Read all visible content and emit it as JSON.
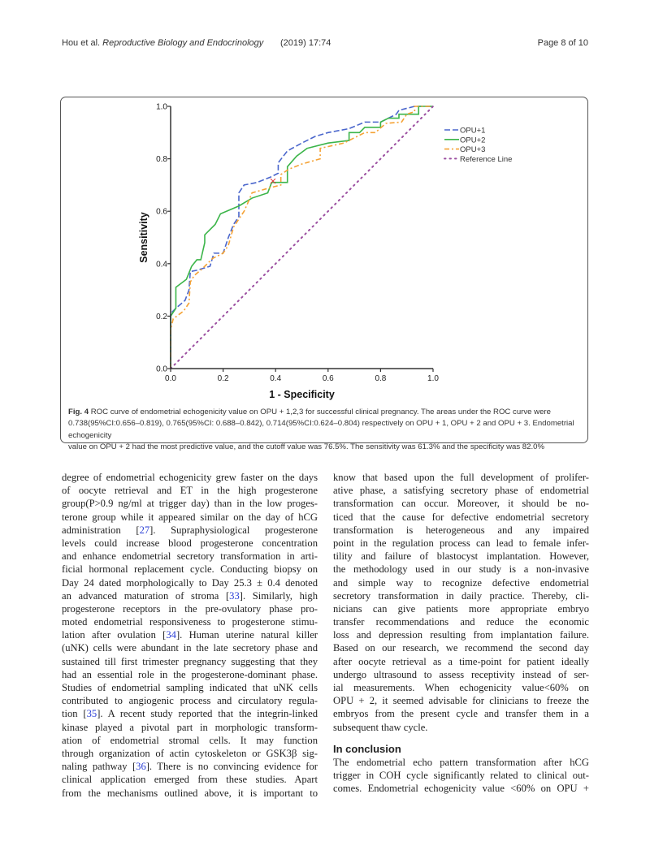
{
  "header": {
    "authors": "Hou et al.",
    "journal": "Reproductive Biology and Endocrinology",
    "year_volume": "(2019) 17:74",
    "page": "Page 8 of 10"
  },
  "figure": {
    "caption_label": "Fig. 4",
    "caption_lines": [
      " ROC curve of endometrial echogenicity value on OPU + 1,2,3 for successful clinical pregnancy. The areas under the ROC curve were",
      "0.738(95%CI:0.656–0.819), 0.765(95%CI: 0.688–0.842), 0.714(95%CI:0.624–0.804) respectively on OPU + 1, OPU + 2 and OPU + 3. Endometrial echogenicity",
      "value on OPU + 2 had the most predictive value, and the cutoff value was 76.5%. The sensitivity was 61.3% and the specificity was 82.0%"
    ]
  },
  "chart_data": {
    "type": "line",
    "title": "",
    "xlabel": "1 - Specificity",
    "ylabel": "Sensitivity",
    "xlim": [
      0,
      1
    ],
    "ylim": [
      0,
      1
    ],
    "xticks": [
      "0.0",
      "0.2",
      "0.4",
      "0.6",
      "0.8",
      "1.0"
    ],
    "yticks": [
      "0.0",
      "0.2",
      "0.4",
      "0.6",
      "0.8",
      "1.0"
    ],
    "grid": false,
    "legend_position": "top-right",
    "series": [
      {
        "name": "OPU+1",
        "color": "#4a66cc",
        "style": "dash",
        "points": [
          [
            0,
            0
          ],
          [
            0,
            0.21
          ],
          [
            0.02,
            0.23
          ],
          [
            0.055,
            0.26
          ],
          [
            0.07,
            0.3
          ],
          [
            0.075,
            0.37
          ],
          [
            0.1,
            0.375
          ],
          [
            0.15,
            0.39
          ],
          [
            0.165,
            0.44
          ],
          [
            0.2,
            0.44
          ],
          [
            0.22,
            0.5
          ],
          [
            0.24,
            0.55
          ],
          [
            0.26,
            0.58
          ],
          [
            0.26,
            0.67
          ],
          [
            0.28,
            0.7
          ],
          [
            0.33,
            0.71
          ],
          [
            0.38,
            0.73
          ],
          [
            0.41,
            0.745
          ],
          [
            0.41,
            0.785
          ],
          [
            0.445,
            0.83
          ],
          [
            0.5,
            0.86
          ],
          [
            0.55,
            0.885
          ],
          [
            0.6,
            0.9
          ],
          [
            0.68,
            0.915
          ],
          [
            0.74,
            0.94
          ],
          [
            0.8,
            0.94
          ],
          [
            0.86,
            0.97
          ],
          [
            0.87,
            0.985
          ],
          [
            0.93,
            1.0
          ],
          [
            1,
            1
          ]
        ]
      },
      {
        "name": "OPU+2",
        "color": "#3cb54a",
        "style": "solid",
        "points": [
          [
            0,
            0
          ],
          [
            0,
            0.2
          ],
          [
            0.02,
            0.23
          ],
          [
            0.02,
            0.31
          ],
          [
            0.06,
            0.34
          ],
          [
            0.08,
            0.39
          ],
          [
            0.1,
            0.415
          ],
          [
            0.115,
            0.415
          ],
          [
            0.13,
            0.48
          ],
          [
            0.13,
            0.51
          ],
          [
            0.17,
            0.55
          ],
          [
            0.185,
            0.58
          ],
          [
            0.19,
            0.59
          ],
          [
            0.26,
            0.62
          ],
          [
            0.31,
            0.65
          ],
          [
            0.37,
            0.67
          ],
          [
            0.385,
            0.71
          ],
          [
            0.445,
            0.71
          ],
          [
            0.445,
            0.77
          ],
          [
            0.48,
            0.81
          ],
          [
            0.52,
            0.84
          ],
          [
            0.6,
            0.86
          ],
          [
            0.68,
            0.87
          ],
          [
            0.68,
            0.9
          ],
          [
            0.72,
            0.9
          ],
          [
            0.74,
            0.92
          ],
          [
            0.8,
            0.92
          ],
          [
            0.8,
            0.94
          ],
          [
            0.83,
            0.955
          ],
          [
            0.87,
            0.955
          ],
          [
            0.87,
            0.97
          ],
          [
            0.945,
            0.97
          ],
          [
            0.945,
            1
          ],
          [
            1,
            1
          ]
        ]
      },
      {
        "name": "OPU+3",
        "color": "#f5a234",
        "style": "dashdot",
        "points": [
          [
            0,
            0
          ],
          [
            0,
            0.15
          ],
          [
            0.01,
            0.19
          ],
          [
            0.05,
            0.22
          ],
          [
            0.07,
            0.25
          ],
          [
            0.075,
            0.33
          ],
          [
            0.09,
            0.355
          ],
          [
            0.12,
            0.38
          ],
          [
            0.16,
            0.42
          ],
          [
            0.2,
            0.44
          ],
          [
            0.22,
            0.47
          ],
          [
            0.24,
            0.54
          ],
          [
            0.26,
            0.57
          ],
          [
            0.28,
            0.6
          ],
          [
            0.3,
            0.645
          ],
          [
            0.31,
            0.67
          ],
          [
            0.38,
            0.69
          ],
          [
            0.42,
            0.7
          ],
          [
            0.42,
            0.74
          ],
          [
            0.45,
            0.76
          ],
          [
            0.5,
            0.78
          ],
          [
            0.57,
            0.8
          ],
          [
            0.57,
            0.84
          ],
          [
            0.66,
            0.86
          ],
          [
            0.7,
            0.88
          ],
          [
            0.74,
            0.9
          ],
          [
            0.78,
            0.9
          ],
          [
            0.82,
            0.935
          ],
          [
            0.88,
            0.94
          ],
          [
            0.9,
            0.97
          ],
          [
            0.93,
            0.98
          ],
          [
            0.93,
            1
          ],
          [
            1,
            1
          ]
        ]
      },
      {
        "name": "Reference Line",
        "color": "#9b4ea0",
        "style": "dot",
        "points": [
          [
            0,
            0
          ],
          [
            1,
            1
          ]
        ]
      }
    ],
    "annotations": [
      {
        "type": "cutoff-marker",
        "x": 0.39,
        "y": 0.715,
        "color": "#e03030"
      }
    ]
  },
  "body": {
    "left_lines": [
      "degree of endometrial echogenicity grew faster on the days",
      "of oocyte retrieval and ET in the high progesterone",
      "group(P>0.9 ng/ml at trigger day) than in the low proges-",
      "terone group while it appeared similar on the day of hCG",
      "administration [27]. Supraphysiological progesterone",
      "levels could increase blood progesterone concentration",
      "and enhance endometrial secretory transformation in arti-",
      "ficial hormonal replacement cycle. Conducting biopsy on",
      "Day 24 dated morphologically to Day 25.3 ± 0.4 denoted",
      "an advanced maturation of stroma [33]. Similarly, high",
      "progesterone receptors in the pre-ovulatory phase pro-",
      "moted endometrial responsiveness to progesterone stimu-",
      "lation after ovulation [34]. Human uterine natural killer",
      "(uNK) cells were abundant in the late secretory phase and",
      "sustained till first trimester pregnancy suggesting that they",
      "had an essential role in the progesterone-dominant phase.",
      "Studies of endometrial sampling indicated that uNK cells",
      "contributed to angiogenic process and circulatory regula-",
      "tion [35]. A recent study reported that the integrin-linked",
      "kinase played a pivotal part in morphologic transform-",
      "ation of endometrial stromal cells. It may function",
      "through organization of actin cytoskeleton or GSK3β sig-",
      "naling pathway [36]. There is no convincing evidence for",
      "clinical application emerged from these studies. Apart",
      "from the mechanisms outlined above, it is important to"
    ],
    "right_lines": [
      "know that based upon the full development of prolifer-",
      "ative phase, a satisfying secretory phase of endometrial",
      "transformation can occur. Moreover, it should be no-",
      "ticed that the cause for defective endometrial secretory",
      "transformation is heterogeneous and any impaired",
      "point in the regulation process can lead to female infer-",
      "tility and failure of blastocyst implantation. However,",
      "the methodology used in our study is a non-invasive",
      "and simple way to recognize defective endometrial",
      "secretory transformation in daily practice. Thereby, cli-",
      "nicians can give patients more appropriate embryo",
      "transfer recommendations and reduce the economic",
      "loss and depression resulting from implantation failure.",
      "Based on our research, we recommend the second day",
      "after oocyte retrieval as a time-point for patient ideally",
      "undergo ultrasound to assess receptivity instead of ser-",
      "ial measurements. When echogenicity value<60% on",
      "OPU + 2, it seemed advisable for clinicians to freeze the",
      "embryos from the present cycle and transfer them in a",
      "subsequent thaw cycle."
    ],
    "conclusion_heading": "In conclusion",
    "conclusion_lines": [
      "The endometrial echo pattern transformation after hCG",
      "trigger in COH cycle significantly related to clinical out-",
      "comes. Endometrial echogenicity value <60% on OPU +"
    ]
  }
}
